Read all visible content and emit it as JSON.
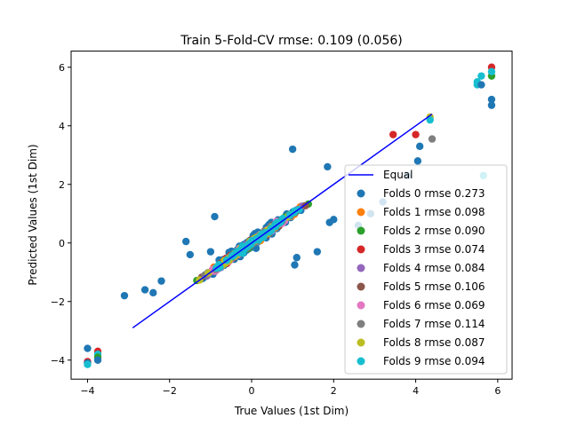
{
  "chart_data": {
    "type": "scatter",
    "title": "Train 5-Fold-CV rmse: 0.109 (0.056)",
    "xlabel": "True Values (1st Dim)",
    "ylabel": "Predicted Values (1st Dim)",
    "xlim": [
      -4.4,
      6.35
    ],
    "ylim": [
      -4.65,
      6.55
    ],
    "xticks": [
      -4,
      -2,
      0,
      2,
      4,
      6
    ],
    "yticks": [
      -4,
      -2,
      0,
      2,
      4,
      6
    ],
    "legend_position": "lower-right",
    "equal_line": {
      "name": "Equal",
      "x": [
        -2.9,
        4.4
      ],
      "y": [
        -2.9,
        4.4
      ],
      "color": "#0000ff"
    },
    "series": [
      {
        "name": "Folds 0 rmse 0.273",
        "color": "#1f77b4"
      },
      {
        "name": "Folds 1 rmse 0.098",
        "color": "#ff7f0e"
      },
      {
        "name": "Folds 2 rmse 0.090",
        "color": "#2ca02c"
      },
      {
        "name": "Folds 3 rmse 0.074",
        "color": "#d62728"
      },
      {
        "name": "Folds 4 rmse 0.084",
        "color": "#9467bd"
      },
      {
        "name": "Folds 5 rmse 0.106",
        "color": "#8c564b"
      },
      {
        "name": "Folds 6 rmse 0.069",
        "color": "#e377c2"
      },
      {
        "name": "Folds 7 rmse 0.114",
        "color": "#7f7f7f"
      },
      {
        "name": "Folds 8 rmse 0.087",
        "color": "#bcbd22"
      },
      {
        "name": "Folds 9 rmse 0.094",
        "color": "#17becf"
      }
    ],
    "outliers": [
      {
        "series": 0,
        "x": -4.0,
        "y": -3.6
      },
      {
        "series": 0,
        "x": -3.1,
        "y": -1.8
      },
      {
        "series": 0,
        "x": -2.4,
        "y": -1.7
      },
      {
        "series": 0,
        "x": -2.2,
        "y": -1.3
      },
      {
        "series": 0,
        "x": -1.5,
        "y": -0.4
      },
      {
        "series": 0,
        "x": -0.9,
        "y": 0.9
      },
      {
        "series": 0,
        "x": -1.6,
        "y": 0.05
      },
      {
        "series": 0,
        "x": -1.0,
        "y": -0.3
      },
      {
        "series": 0,
        "x": 1.0,
        "y": 3.2
      },
      {
        "series": 0,
        "x": 1.1,
        "y": -0.5
      },
      {
        "series": 0,
        "x": 1.05,
        "y": -0.75
      },
      {
        "series": 0,
        "x": 1.6,
        "y": -0.3
      },
      {
        "series": 0,
        "x": 1.9,
        "y": 0.7
      },
      {
        "series": 0,
        "x": 2.0,
        "y": 0.8
      },
      {
        "series": 0,
        "x": 2.6,
        "y": 0.6
      },
      {
        "series": 0,
        "x": 2.9,
        "y": 1.0
      },
      {
        "series": 0,
        "x": 3.2,
        "y": 1.4
      },
      {
        "series": 0,
        "x": 3.8,
        "y": 2.3
      },
      {
        "series": 0,
        "x": 4.05,
        "y": 2.8
      },
      {
        "series": 0,
        "x": 4.1,
        "y": 3.3
      },
      {
        "series": 0,
        "x": 5.85,
        "y": 4.9
      },
      {
        "series": 0,
        "x": 5.85,
        "y": 4.7
      },
      {
        "series": 0,
        "x": 1.85,
        "y": 2.6
      },
      {
        "series": 0,
        "x": -2.6,
        "y": -1.6
      },
      {
        "series": 3,
        "x": 3.45,
        "y": 3.7
      },
      {
        "series": 3,
        "x": 4.0,
        "y": 3.7
      },
      {
        "series": 7,
        "x": 4.4,
        "y": 3.55
      },
      {
        "series": 9,
        "x": 5.5,
        "y": 5.4
      },
      {
        "series": 9,
        "x": 5.5,
        "y": 5.5
      },
      {
        "series": 3,
        "x": 5.85,
        "y": 6.0
      },
      {
        "series": 2,
        "x": 5.85,
        "y": 5.7
      },
      {
        "series": 9,
        "x": 5.6,
        "y": 5.7
      },
      {
        "series": 0,
        "x": 5.6,
        "y": 5.4
      },
      {
        "series": 9,
        "x": 5.85,
        "y": 5.85
      },
      {
        "series": 9,
        "x": 5.65,
        "y": 2.3
      },
      {
        "series": 3,
        "x": -4.0,
        "y": -4.05
      },
      {
        "series": 0,
        "x": -4.0,
        "y": -4.1
      },
      {
        "series": 9,
        "x": -4.0,
        "y": -4.15
      },
      {
        "series": 3,
        "x": -3.75,
        "y": -3.7
      },
      {
        "series": 9,
        "x": -3.75,
        "y": -3.8
      },
      {
        "series": 2,
        "x": -3.75,
        "y": -3.9
      },
      {
        "series": 0,
        "x": -3.75,
        "y": -4.0
      },
      {
        "series": 8,
        "x": 4.35,
        "y": 4.3
      },
      {
        "series": 9,
        "x": 4.35,
        "y": 4.2
      }
    ]
  }
}
